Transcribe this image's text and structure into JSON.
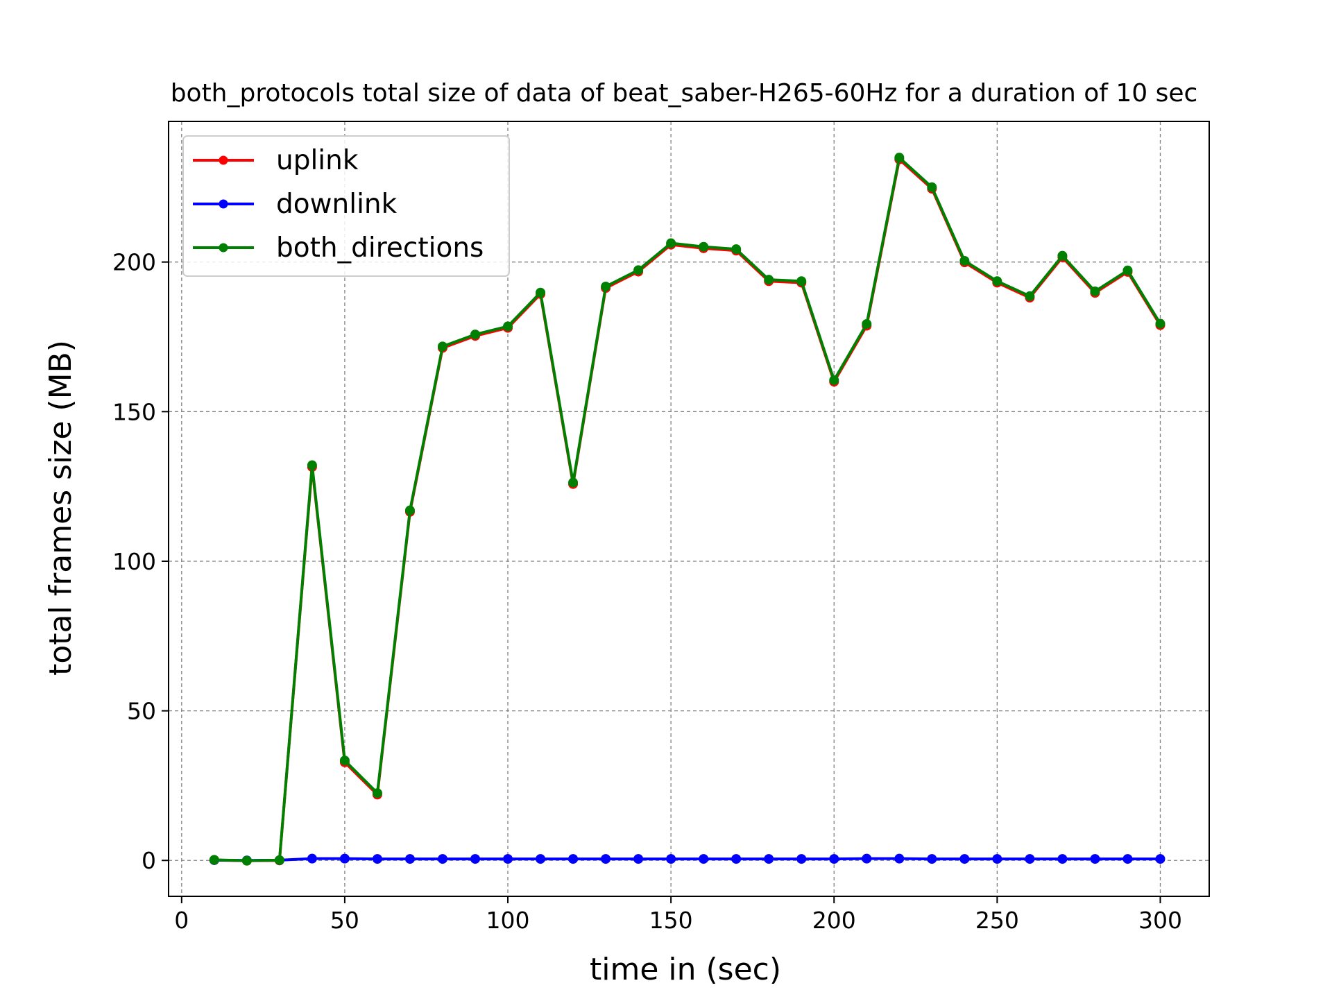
{
  "chart_data": {
    "type": "line",
    "title": "both_protocols total size of data of beat_saber-H265-60Hz for a duration of 10 sec",
    "xlabel": "time in (sec)",
    "ylabel": "total frames size (MB)",
    "xlim": [
      -4,
      315
    ],
    "ylim": [
      -12,
      247
    ],
    "xticks": [
      0,
      50,
      100,
      150,
      200,
      250,
      300
    ],
    "yticks": [
      0,
      50,
      100,
      150,
      200
    ],
    "grid": true,
    "legend_position": "upper-left",
    "x": [
      10,
      20,
      30,
      40,
      50,
      60,
      70,
      80,
      90,
      100,
      110,
      120,
      130,
      140,
      150,
      160,
      170,
      180,
      190,
      200,
      210,
      220,
      230,
      240,
      250,
      260,
      270,
      280,
      290,
      300
    ],
    "series": [
      {
        "name": "uplink",
        "color": "#ff0000",
        "values": [
          0.1,
          -0.1,
          0.0,
          131.5,
          32.8,
          22.0,
          116.5,
          171.3,
          175.3,
          178.0,
          189.3,
          125.8,
          191.3,
          196.8,
          205.8,
          204.6,
          203.8,
          193.6,
          193.1,
          160.0,
          178.7,
          234.3,
          224.5,
          199.9,
          193.1,
          188.1,
          201.6,
          189.7,
          196.7,
          178.9
        ]
      },
      {
        "name": "downlink",
        "color": "#0000ff",
        "values": [
          0.1,
          0.0,
          0.1,
          0.6,
          0.6,
          0.5,
          0.5,
          0.5,
          0.5,
          0.5,
          0.5,
          0.5,
          0.5,
          0.5,
          0.5,
          0.5,
          0.5,
          0.5,
          0.5,
          0.5,
          0.6,
          0.6,
          0.5,
          0.5,
          0.5,
          0.5,
          0.5,
          0.5,
          0.5,
          0.5
        ]
      },
      {
        "name": "both_directions",
        "color": "#008000",
        "values": [
          0.2,
          -0.1,
          0.1,
          132.1,
          33.4,
          22.5,
          117.0,
          171.8,
          175.8,
          178.5,
          189.8,
          126.3,
          191.8,
          197.3,
          206.3,
          205.1,
          204.3,
          194.1,
          193.6,
          160.5,
          179.3,
          234.9,
          225.0,
          200.4,
          193.6,
          188.6,
          202.1,
          190.2,
          197.2,
          179.4
        ]
      }
    ]
  }
}
